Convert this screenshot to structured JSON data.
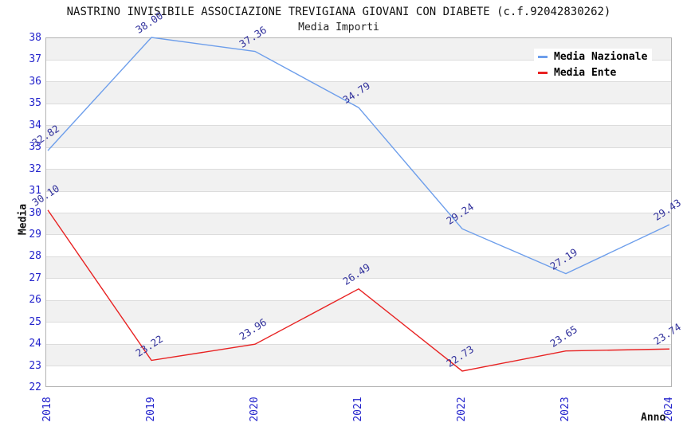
{
  "header": {
    "title": "NASTRINO INVISIBILE ASSOCIAZIONE TREVIGIANA GIOVANI CON DIABETE (c.f.92042830262)",
    "subtitle": "Media Importi"
  },
  "axes": {
    "ylabel": "Media",
    "xlabel": "Anno"
  },
  "colors": {
    "tick_label": "#2323cc",
    "point_label": "#31319c",
    "band_gray": "#f1f1f1",
    "gridline": "#dcdcdc",
    "plot_border": "#b3b3b3"
  },
  "chart_data": {
    "type": "line",
    "title": "Media Importi",
    "xlabel": "Anno",
    "ylabel": "Media",
    "categories": [
      "2018",
      "2019",
      "2020",
      "2021",
      "2022",
      "2023",
      "2024"
    ],
    "series": [
      {
        "name": "Media Nazionale",
        "color": "#6d9eeb",
        "values": [
          32.82,
          38.0,
          37.36,
          34.79,
          29.24,
          27.19,
          29.43
        ]
      },
      {
        "name": "Media Ente",
        "color": "#e82222",
        "values": [
          30.1,
          23.22,
          23.96,
          26.49,
          22.73,
          23.65,
          23.74
        ]
      }
    ],
    "ylim": [
      22,
      38
    ],
    "ytick_step": 1,
    "grid": true,
    "background_bands": true,
    "legend_position": "top-right",
    "point_labels_decimals": 2
  }
}
